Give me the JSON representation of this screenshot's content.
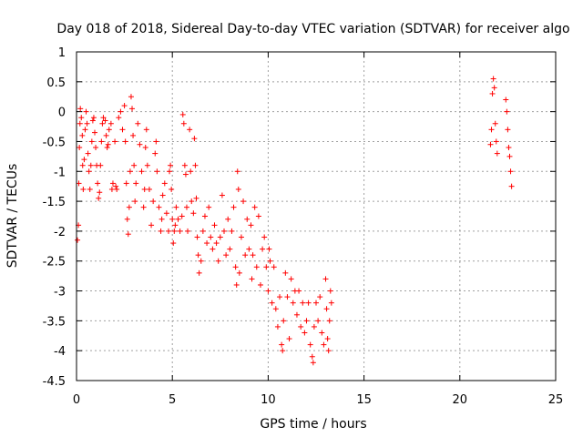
{
  "chart_data": {
    "type": "scatter",
    "title": "Day 018 of 2018, Sidereal Day-to-day VTEC variation (SDTVAR) for receiver algo",
    "xlabel": "GPS time / hours",
    "ylabel": "SDTVAR / TECUs",
    "xlim": [
      0,
      25
    ],
    "ylim": [
      -4.5,
      1
    ],
    "xticks": [
      0,
      5,
      10,
      15,
      20,
      25
    ],
    "xtick_labels": [
      "0",
      "5",
      "10",
      "15",
      "20",
      "25"
    ],
    "yticks": [
      1,
      0.5,
      0,
      -0.5,
      -1,
      -1.5,
      -2,
      -2.5,
      -3,
      -3.5,
      -4,
      -4.5
    ],
    "ytick_labels": [
      "1",
      "0.5",
      "0",
      "-0.5",
      "-1",
      "-1.5",
      "-2",
      "-2.5",
      "-3",
      "-3.5",
      "-4",
      "-4.5"
    ],
    "grid": true,
    "marker": "+",
    "marker_color": "#ff0000",
    "series": [
      {
        "name": "SDTVAR",
        "points": [
          [
            0.05,
            -2.15
          ],
          [
            0.1,
            -1.9
          ],
          [
            0.12,
            -1.2
          ],
          [
            0.15,
            -0.6
          ],
          [
            0.18,
            -0.2
          ],
          [
            0.2,
            0.05
          ],
          [
            0.25,
            -0.1
          ],
          [
            0.3,
            -0.4
          ],
          [
            0.32,
            -0.9
          ],
          [
            0.35,
            -1.3
          ],
          [
            0.4,
            -0.8
          ],
          [
            0.45,
            -0.3
          ],
          [
            0.5,
            0.0
          ],
          [
            0.55,
            -0.2
          ],
          [
            0.6,
            -0.7
          ],
          [
            0.65,
            -1.0
          ],
          [
            0.7,
            -1.3
          ],
          [
            0.75,
            -0.9
          ],
          [
            0.8,
            -0.5
          ],
          [
            0.85,
            -0.15
          ],
          [
            0.9,
            -0.1
          ],
          [
            0.95,
            -0.35
          ],
          [
            1.0,
            -0.6
          ],
          [
            1.05,
            -0.9
          ],
          [
            1.1,
            -1.2
          ],
          [
            1.15,
            -1.45
          ],
          [
            1.2,
            -1.35
          ],
          [
            1.25,
            -0.9
          ],
          [
            1.3,
            -0.5
          ],
          [
            1.35,
            -0.2
          ],
          [
            1.4,
            -0.1
          ],
          [
            1.5,
            -0.15
          ],
          [
            1.55,
            -0.4
          ],
          [
            1.6,
            -0.6
          ],
          [
            1.65,
            -0.55
          ],
          [
            1.7,
            -0.3
          ],
          [
            1.8,
            -0.2
          ],
          [
            1.85,
            -1.3
          ],
          [
            1.9,
            -1.2
          ],
          [
            2.0,
            -0.5
          ],
          [
            2.05,
            -1.25
          ],
          [
            2.1,
            -1.3
          ],
          [
            2.2,
            -0.1
          ],
          [
            2.3,
            -0.0
          ],
          [
            2.4,
            -0.3
          ],
          [
            2.5,
            0.1
          ],
          [
            2.55,
            -0.5
          ],
          [
            2.6,
            -1.2
          ],
          [
            2.65,
            -1.8
          ],
          [
            2.7,
            -2.05
          ],
          [
            2.75,
            -1.6
          ],
          [
            2.8,
            -1.0
          ],
          [
            2.85,
            0.25
          ],
          [
            2.9,
            0.05
          ],
          [
            2.95,
            -0.4
          ],
          [
            3.0,
            -0.9
          ],
          [
            3.05,
            -1.5
          ],
          [
            3.1,
            -1.2
          ],
          [
            3.2,
            -0.2
          ],
          [
            3.3,
            -0.55
          ],
          [
            3.4,
            -1.0
          ],
          [
            3.5,
            -1.6
          ],
          [
            3.55,
            -1.3
          ],
          [
            3.6,
            -0.6
          ],
          [
            3.65,
            -0.3
          ],
          [
            3.7,
            -0.9
          ],
          [
            3.8,
            -1.3
          ],
          [
            3.9,
            -1.9
          ],
          [
            4.0,
            -1.5
          ],
          [
            4.1,
            -0.7
          ],
          [
            4.15,
            -0.5
          ],
          [
            4.2,
            -1.0
          ],
          [
            4.3,
            -1.6
          ],
          [
            4.4,
            -2.0
          ],
          [
            4.45,
            -1.8
          ],
          [
            4.5,
            -1.4
          ],
          [
            4.6,
            -1.2
          ],
          [
            4.7,
            -1.7
          ],
          [
            4.8,
            -2.0
          ],
          [
            4.85,
            -1.0
          ],
          [
            4.9,
            -0.9
          ],
          [
            4.95,
            -1.3
          ],
          [
            5.0,
            -1.8
          ],
          [
            5.05,
            -2.2
          ],
          [
            5.1,
            -2.0
          ],
          [
            5.15,
            -1.9
          ],
          [
            5.2,
            -1.6
          ],
          [
            5.3,
            -1.8
          ],
          [
            5.4,
            -2.0
          ],
          [
            5.5,
            -1.75
          ],
          [
            5.55,
            -0.05
          ],
          [
            5.6,
            -0.2
          ],
          [
            5.65,
            -0.9
          ],
          [
            5.7,
            -1.05
          ],
          [
            5.75,
            -1.6
          ],
          [
            5.8,
            -2.0
          ],
          [
            5.9,
            -0.3
          ],
          [
            5.95,
            -1.0
          ],
          [
            6.0,
            -1.5
          ],
          [
            6.1,
            -1.7
          ],
          [
            6.15,
            -0.45
          ],
          [
            6.2,
            -0.9
          ],
          [
            6.25,
            -1.45
          ],
          [
            6.3,
            -2.1
          ],
          [
            6.35,
            -2.4
          ],
          [
            6.4,
            -2.7
          ],
          [
            6.5,
            -2.5
          ],
          [
            6.6,
            -2.0
          ],
          [
            6.7,
            -1.75
          ],
          [
            6.8,
            -2.2
          ],
          [
            6.9,
            -1.6
          ],
          [
            7.0,
            -2.1
          ],
          [
            7.1,
            -2.3
          ],
          [
            7.2,
            -1.9
          ],
          [
            7.3,
            -2.2
          ],
          [
            7.4,
            -2.5
          ],
          [
            7.5,
            -2.1
          ],
          [
            7.6,
            -1.4
          ],
          [
            7.7,
            -2.0
          ],
          [
            7.8,
            -2.4
          ],
          [
            7.9,
            -1.8
          ],
          [
            8.0,
            -2.3
          ],
          [
            8.1,
            -2.0
          ],
          [
            8.2,
            -1.6
          ],
          [
            8.3,
            -2.6
          ],
          [
            8.35,
            -2.9
          ],
          [
            8.4,
            -1.0
          ],
          [
            8.45,
            -1.3
          ],
          [
            8.5,
            -2.7
          ],
          [
            8.6,
            -2.1
          ],
          [
            8.7,
            -1.5
          ],
          [
            8.8,
            -2.4
          ],
          [
            8.9,
            -1.8
          ],
          [
            9.0,
            -2.3
          ],
          [
            9.1,
            -1.9
          ],
          [
            9.15,
            -2.8
          ],
          [
            9.2,
            -2.4
          ],
          [
            9.3,
            -1.6
          ],
          [
            9.4,
            -2.6
          ],
          [
            9.5,
            -1.75
          ],
          [
            9.6,
            -2.9
          ],
          [
            9.7,
            -2.3
          ],
          [
            9.8,
            -2.1
          ],
          [
            9.9,
            -2.6
          ],
          [
            10.0,
            -3.0
          ],
          [
            10.05,
            -2.3
          ],
          [
            10.1,
            -2.5
          ],
          [
            10.2,
            -3.2
          ],
          [
            10.3,
            -2.6
          ],
          [
            10.4,
            -3.3
          ],
          [
            10.5,
            -3.6
          ],
          [
            10.6,
            -3.1
          ],
          [
            10.7,
            -3.9
          ],
          [
            10.75,
            -4.0
          ],
          [
            10.8,
            -3.5
          ],
          [
            10.9,
            -2.7
          ],
          [
            11.0,
            -3.1
          ],
          [
            11.1,
            -3.8
          ],
          [
            11.2,
            -2.8
          ],
          [
            11.3,
            -3.2
          ],
          [
            11.4,
            -3.0
          ],
          [
            11.5,
            -3.4
          ],
          [
            11.6,
            -3.0
          ],
          [
            11.7,
            -3.6
          ],
          [
            11.8,
            -3.2
          ],
          [
            11.9,
            -3.7
          ],
          [
            12.0,
            -3.5
          ],
          [
            12.1,
            -3.2
          ],
          [
            12.2,
            -3.9
          ],
          [
            12.3,
            -4.1
          ],
          [
            12.35,
            -4.2
          ],
          [
            12.4,
            -3.6
          ],
          [
            12.5,
            -3.2
          ],
          [
            12.6,
            -3.5
          ],
          [
            12.7,
            -3.1
          ],
          [
            12.8,
            -3.7
          ],
          [
            12.9,
            -3.9
          ],
          [
            13.0,
            -2.8
          ],
          [
            13.05,
            -3.3
          ],
          [
            13.1,
            -3.8
          ],
          [
            13.15,
            -4.0
          ],
          [
            13.2,
            -3.5
          ],
          [
            13.25,
            -3.0
          ],
          [
            13.3,
            -3.2
          ],
          [
            21.6,
            -0.55
          ],
          [
            21.65,
            -0.3
          ],
          [
            21.7,
            0.3
          ],
          [
            21.75,
            0.55
          ],
          [
            21.8,
            0.4
          ],
          [
            21.85,
            -0.2
          ],
          [
            21.9,
            -0.5
          ],
          [
            21.95,
            -0.7
          ],
          [
            22.4,
            0.2
          ],
          [
            22.45,
            0.0
          ],
          [
            22.5,
            -0.3
          ],
          [
            22.55,
            -0.6
          ],
          [
            22.6,
            -0.75
          ],
          [
            22.65,
            -1.0
          ],
          [
            22.7,
            -1.25
          ]
        ]
      }
    ]
  }
}
